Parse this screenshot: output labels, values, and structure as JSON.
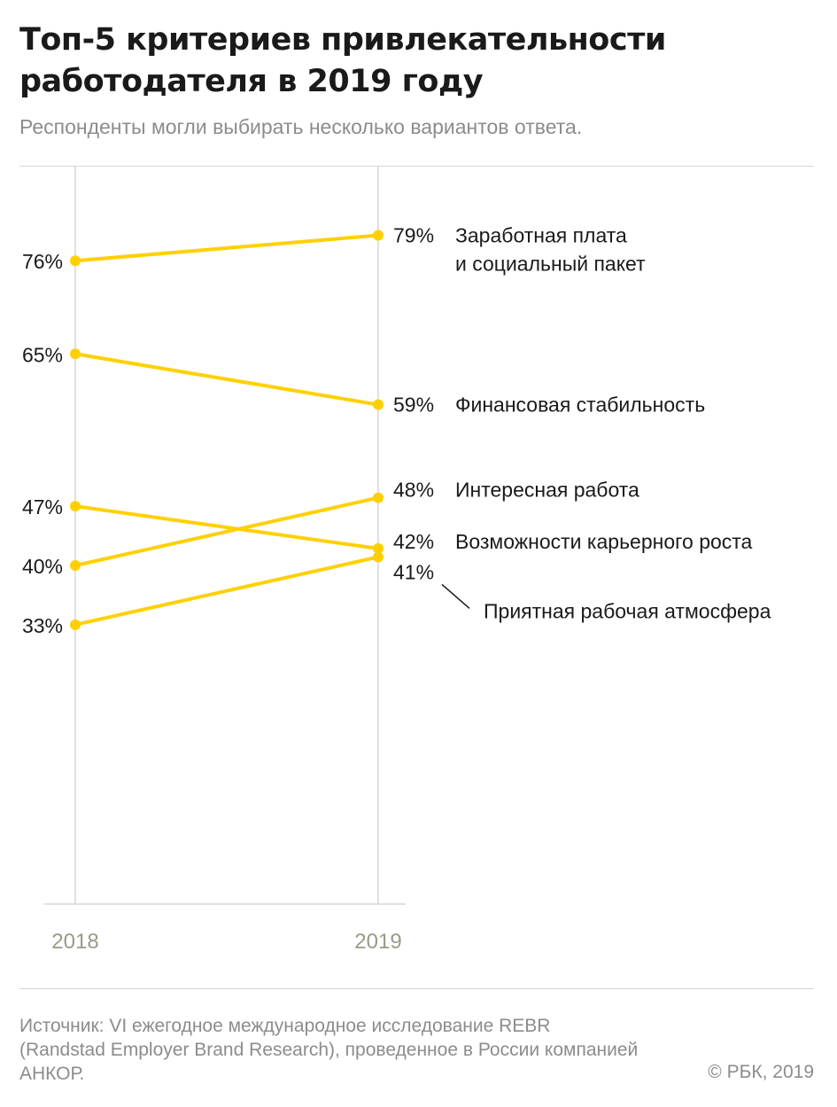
{
  "header": {
    "title_lines": [
      "Топ-5 критериев привлекательности",
      "работодателя в 2019 году"
    ],
    "subtitle": "Респонденты могли выбирать несколько вариантов ответа."
  },
  "chart_data": {
    "type": "line",
    "x": [
      "2018",
      "2019"
    ],
    "series": [
      {
        "name": "Заработная плата\nи социальный пакет",
        "values": [
          76,
          79
        ],
        "labels": [
          "76%",
          "79%"
        ]
      },
      {
        "name": "Финансовая стабильность",
        "values": [
          65,
          59
        ],
        "labels": [
          "65%",
          "59%"
        ]
      },
      {
        "name": "Интересная работа",
        "values": [
          40,
          48
        ],
        "labels": [
          "40%",
          "48%"
        ]
      },
      {
        "name": "Возможности карьерного роста",
        "values": [
          47,
          42
        ],
        "labels": [
          "47%",
          "42%"
        ]
      },
      {
        "name": "Приятная рабочая атмосфера",
        "values": [
          33,
          41
        ],
        "labels": [
          "33%",
          "41%"
        ]
      }
    ],
    "ylim": [
      0,
      90
    ],
    "grid": false,
    "colors": {
      "line": "#ffd000",
      "axis": "#d6d6d6",
      "tick_label": "#9a9a8a",
      "text": "#1a1a1a"
    }
  },
  "footer": {
    "source": "Источник: VI ежегодное международное исследование REBR (Randstad Employer Brand Research), проведенное в России компанией АНКОР.",
    "copyright": "© РБК, 2019"
  }
}
